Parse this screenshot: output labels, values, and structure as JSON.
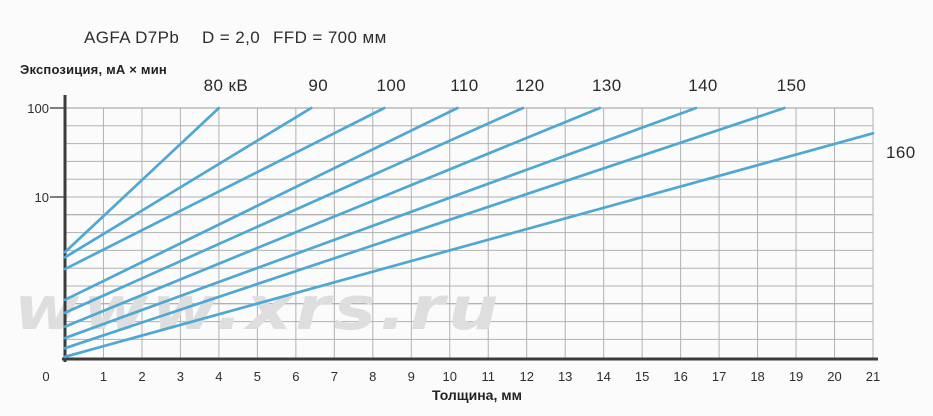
{
  "header": {
    "film": "AGFA D7Pb",
    "density": "D = 2,0",
    "ffd": "FFD = 700 мм"
  },
  "y_axis": {
    "title": "Экспозиция, мА × мин",
    "scale": "log",
    "tick_labels": [
      "100",
      "10"
    ],
    "tick_values": [
      100,
      10
    ]
  },
  "x_axis": {
    "title": "Толщина, мм",
    "tick_labels": [
      "0",
      "1",
      "2",
      "3",
      "4",
      "5",
      "6",
      "7",
      "8",
      "9",
      "10",
      "11",
      "12",
      "13",
      "14",
      "15",
      "16",
      "17",
      "18",
      "19",
      "20",
      "21"
    ],
    "tick_values": [
      0,
      1,
      2,
      3,
      4,
      5,
      6,
      7,
      8,
      9,
      10,
      11,
      12,
      13,
      14,
      15,
      16,
      17,
      18,
      19,
      20,
      21
    ]
  },
  "watermark": {
    "text": "www.xrs.ru"
  },
  "colors": {
    "curve": "#4fa7d3",
    "grid": "#b2b2b2",
    "grid_major": "#9a9a9a",
    "axis": "#3c3c3c",
    "tick": "#555555",
    "text": "#2b2b2b",
    "watermark": "#dedede",
    "background": "#fbfbfb"
  },
  "chart_data": {
    "type": "line",
    "title": "AGFA D7Pb, D = 2,0, FFD = 700 мм — радиографическая экспозиция",
    "xlabel": "Толщина, мм",
    "ylabel": "Экспозиция, мА × мин",
    "x_range_mm": [
      0,
      21
    ],
    "y_scale": "log",
    "y_range": [
      0.16,
      100
    ],
    "grid": true,
    "y_gridlines_per_decade": 5,
    "legend_position": "labels at curve exit points",
    "series": [
      {
        "name": "80 кВ",
        "kv": 80,
        "label_side": "top",
        "points_mm_exposure": [
          [
            0,
            2.4
          ],
          [
            4.0,
            100
          ]
        ]
      },
      {
        "name": "90",
        "kv": 90,
        "label_side": "top",
        "points_mm_exposure": [
          [
            0,
            2.1
          ],
          [
            6.4,
            100
          ]
        ]
      },
      {
        "name": "100",
        "kv": 100,
        "label_side": "top",
        "points_mm_exposure": [
          [
            0,
            1.55
          ],
          [
            8.3,
            100
          ]
        ]
      },
      {
        "name": "110",
        "kv": 110,
        "label_side": "top",
        "points_mm_exposure": [
          [
            0,
            0.7
          ],
          [
            10.2,
            100
          ]
        ]
      },
      {
        "name": "120",
        "kv": 120,
        "label_side": "top",
        "points_mm_exposure": [
          [
            0,
            0.5
          ],
          [
            11.9,
            100
          ]
        ]
      },
      {
        "name": "130",
        "kv": 130,
        "label_side": "top",
        "points_mm_exposure": [
          [
            0,
            0.35
          ],
          [
            13.9,
            100
          ]
        ]
      },
      {
        "name": "140",
        "kv": 140,
        "label_side": "top",
        "points_mm_exposure": [
          [
            0,
            0.26
          ],
          [
            16.4,
            100
          ]
        ]
      },
      {
        "name": "150",
        "kv": 150,
        "label_side": "top",
        "points_mm_exposure": [
          [
            0,
            0.2
          ],
          [
            18.7,
            100
          ]
        ]
      },
      {
        "name": "160",
        "kv": 160,
        "label_side": "right",
        "points_mm_exposure": [
          [
            0,
            0.16
          ],
          [
            21,
            52
          ]
        ]
      }
    ]
  }
}
